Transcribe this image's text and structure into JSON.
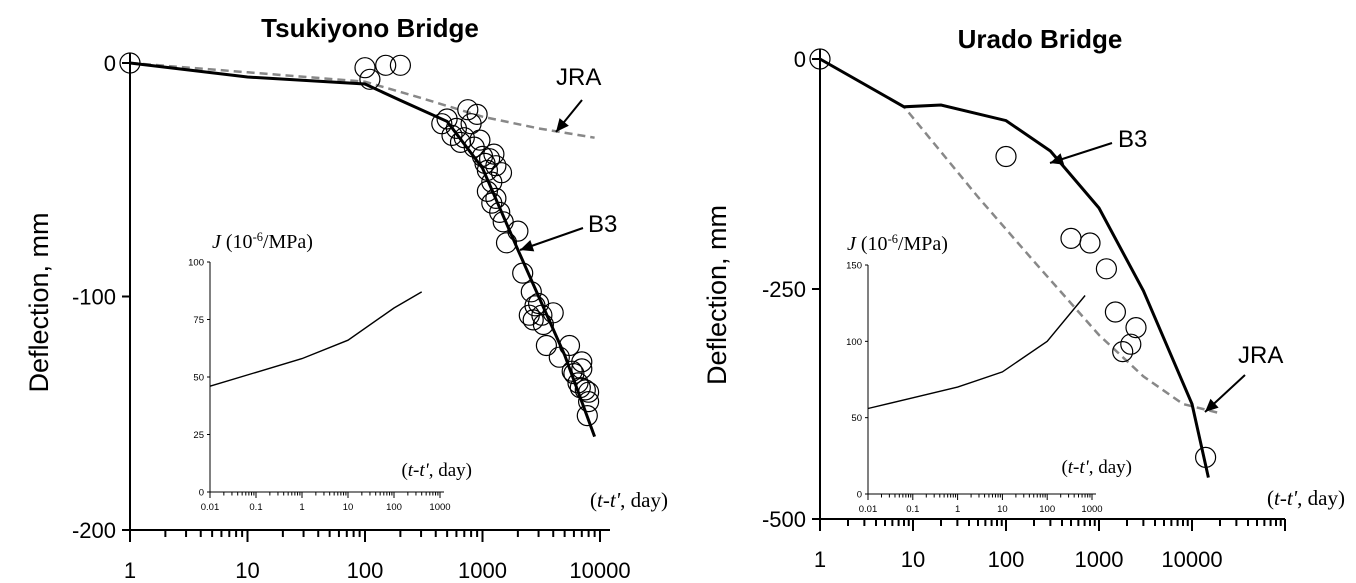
{
  "chart_data": [
    {
      "type": "scatter",
      "title": "Tsukiyono Bridge",
      "ylabel": "Deflection, mm",
      "xlabel_italic": "t-t'",
      "xlabel_rest": ", day",
      "x_scale": "log",
      "xlim": [
        1,
        10000
      ],
      "ylim": [
        -200,
        0
      ],
      "x_ticks": [
        "1",
        "10",
        "100",
        "1000",
        "10000"
      ],
      "y_ticks": [
        "0",
        "-100",
        "-200"
      ],
      "annotations": [
        "JRA",
        "B3"
      ],
      "series": [
        {
          "name": "B3",
          "style": "solid",
          "x": [
            1,
            10,
            100,
            200,
            500,
            1000,
            2000,
            5000,
            9000
          ],
          "y": [
            0,
            -6,
            -9,
            -16,
            -25,
            -45,
            -80,
            -125,
            -160
          ]
        },
        {
          "name": "JRA",
          "style": "dashed",
          "x": [
            1,
            10,
            100,
            300,
            1000,
            3000,
            9000
          ],
          "y": [
            0,
            -4,
            -8,
            -15,
            -23,
            -28,
            -32
          ]
        },
        {
          "style": "circles",
          "x": [
            1,
            100,
            150,
            200,
            110,
            450,
            500,
            550,
            600,
            650,
            700,
            750,
            800,
            850,
            900,
            950,
            1000,
            1050,
            1100,
            1150,
            1200,
            1250,
            1300,
            1100,
            1200,
            1300,
            1400,
            1500,
            1450,
            1600,
            2000,
            2200,
            2500,
            2700,
            3000,
            3300,
            3500,
            2600,
            2800,
            3200,
            4500,
            4000,
            5500,
            6000,
            6500,
            7000,
            7500,
            8000,
            7000,
            8000,
            7800,
            5800,
            6800
          ],
          "y": [
            0,
            -2,
            -1,
            -1,
            -7,
            -26,
            -24,
            -31,
            -28,
            -34,
            -32,
            -20,
            -26,
            -36,
            -22,
            -33,
            -40,
            -43,
            -46,
            -41,
            -51,
            -39,
            -44,
            -55,
            -60,
            -58,
            -64,
            -68,
            -47,
            -77,
            -72,
            -90,
            -108,
            -110,
            -103,
            -112,
            -121,
            -98,
            -104,
            -108,
            -126,
            -107,
            -121,
            -133,
            -137,
            -131,
            -140,
            -141,
            -128,
            -145,
            -151,
            -132,
            -139
          ]
        }
      ],
      "inset": {
        "ylabel_italic": "J",
        "ylabel_rest": " (10",
        "ylabel_sup": "-6",
        "ylabel_unit": "/MPa)",
        "xlabel_italic": "t-t'",
        "xlabel_rest": ", day",
        "x_scale": "log",
        "xlim": [
          0.01,
          1000
        ],
        "ylim": [
          0,
          100
        ],
        "x_ticks": [
          "0.01",
          "0.1",
          "1",
          "10",
          "100",
          "1000"
        ],
        "y_ticks": [
          "0",
          "25",
          "50",
          "75",
          "100"
        ],
        "curve": {
          "x": [
            0.01,
            0.1,
            1,
            10,
            100,
            400
          ],
          "y": [
            46,
            52,
            58,
            66,
            80,
            87
          ]
        }
      }
    },
    {
      "type": "scatter",
      "title": "Urado Bridge",
      "ylabel": "Deflection, mm",
      "xlabel_italic": "t-t'",
      "xlabel_rest": ", day",
      "x_scale": "log",
      "xlim": [
        1,
        100000
      ],
      "ylim": [
        -500,
        0
      ],
      "x_ticks": [
        "1",
        "10",
        "100",
        "1000",
        "10000"
      ],
      "y_ticks": [
        "0",
        "-250",
        "-500"
      ],
      "annotations": [
        "B3",
        "JRA"
      ],
      "series": [
        {
          "name": "B3",
          "style": "solid",
          "x": [
            1,
            8,
            20,
            100,
            300,
            1000,
            3000,
            10000,
            15000
          ],
          "y": [
            0,
            -52,
            -50,
            -67,
            -100,
            -162,
            -252,
            -375,
            -455
          ]
        },
        {
          "name": "JRA",
          "style": "dashed",
          "x": [
            1,
            8,
            50,
            200,
            1000,
            3000,
            8000,
            20000
          ],
          "y": [
            0,
            -52,
            -150,
            -220,
            -300,
            -345,
            -375,
            -385
          ]
        },
        {
          "style": "circles",
          "x": [
            1,
            100,
            500,
            800,
            1200,
            1500,
            2500,
            1800,
            2200,
            14000
          ],
          "y": [
            0,
            -106,
            -195,
            -200,
            -228,
            -275,
            -292,
            -318,
            -310,
            -433
          ]
        }
      ],
      "inset": {
        "ylabel_italic": "J",
        "ylabel_rest": " (10",
        "ylabel_sup": "-6",
        "ylabel_unit": "/MPa)",
        "xlabel_italic": "t-t'",
        "xlabel_rest": ", day",
        "x_scale": "log",
        "xlim": [
          0.01,
          1000
        ],
        "ylim": [
          0,
          150
        ],
        "x_ticks": [
          "0.01",
          "0.1",
          "1",
          "10",
          "100",
          "1000"
        ],
        "y_ticks": [
          "0",
          "50",
          "100",
          "150"
        ],
        "curve": {
          "x": [
            0.01,
            0.1,
            1,
            10,
            100,
            700
          ],
          "y": [
            56,
            63,
            70,
            80,
            100,
            130
          ]
        }
      }
    }
  ]
}
